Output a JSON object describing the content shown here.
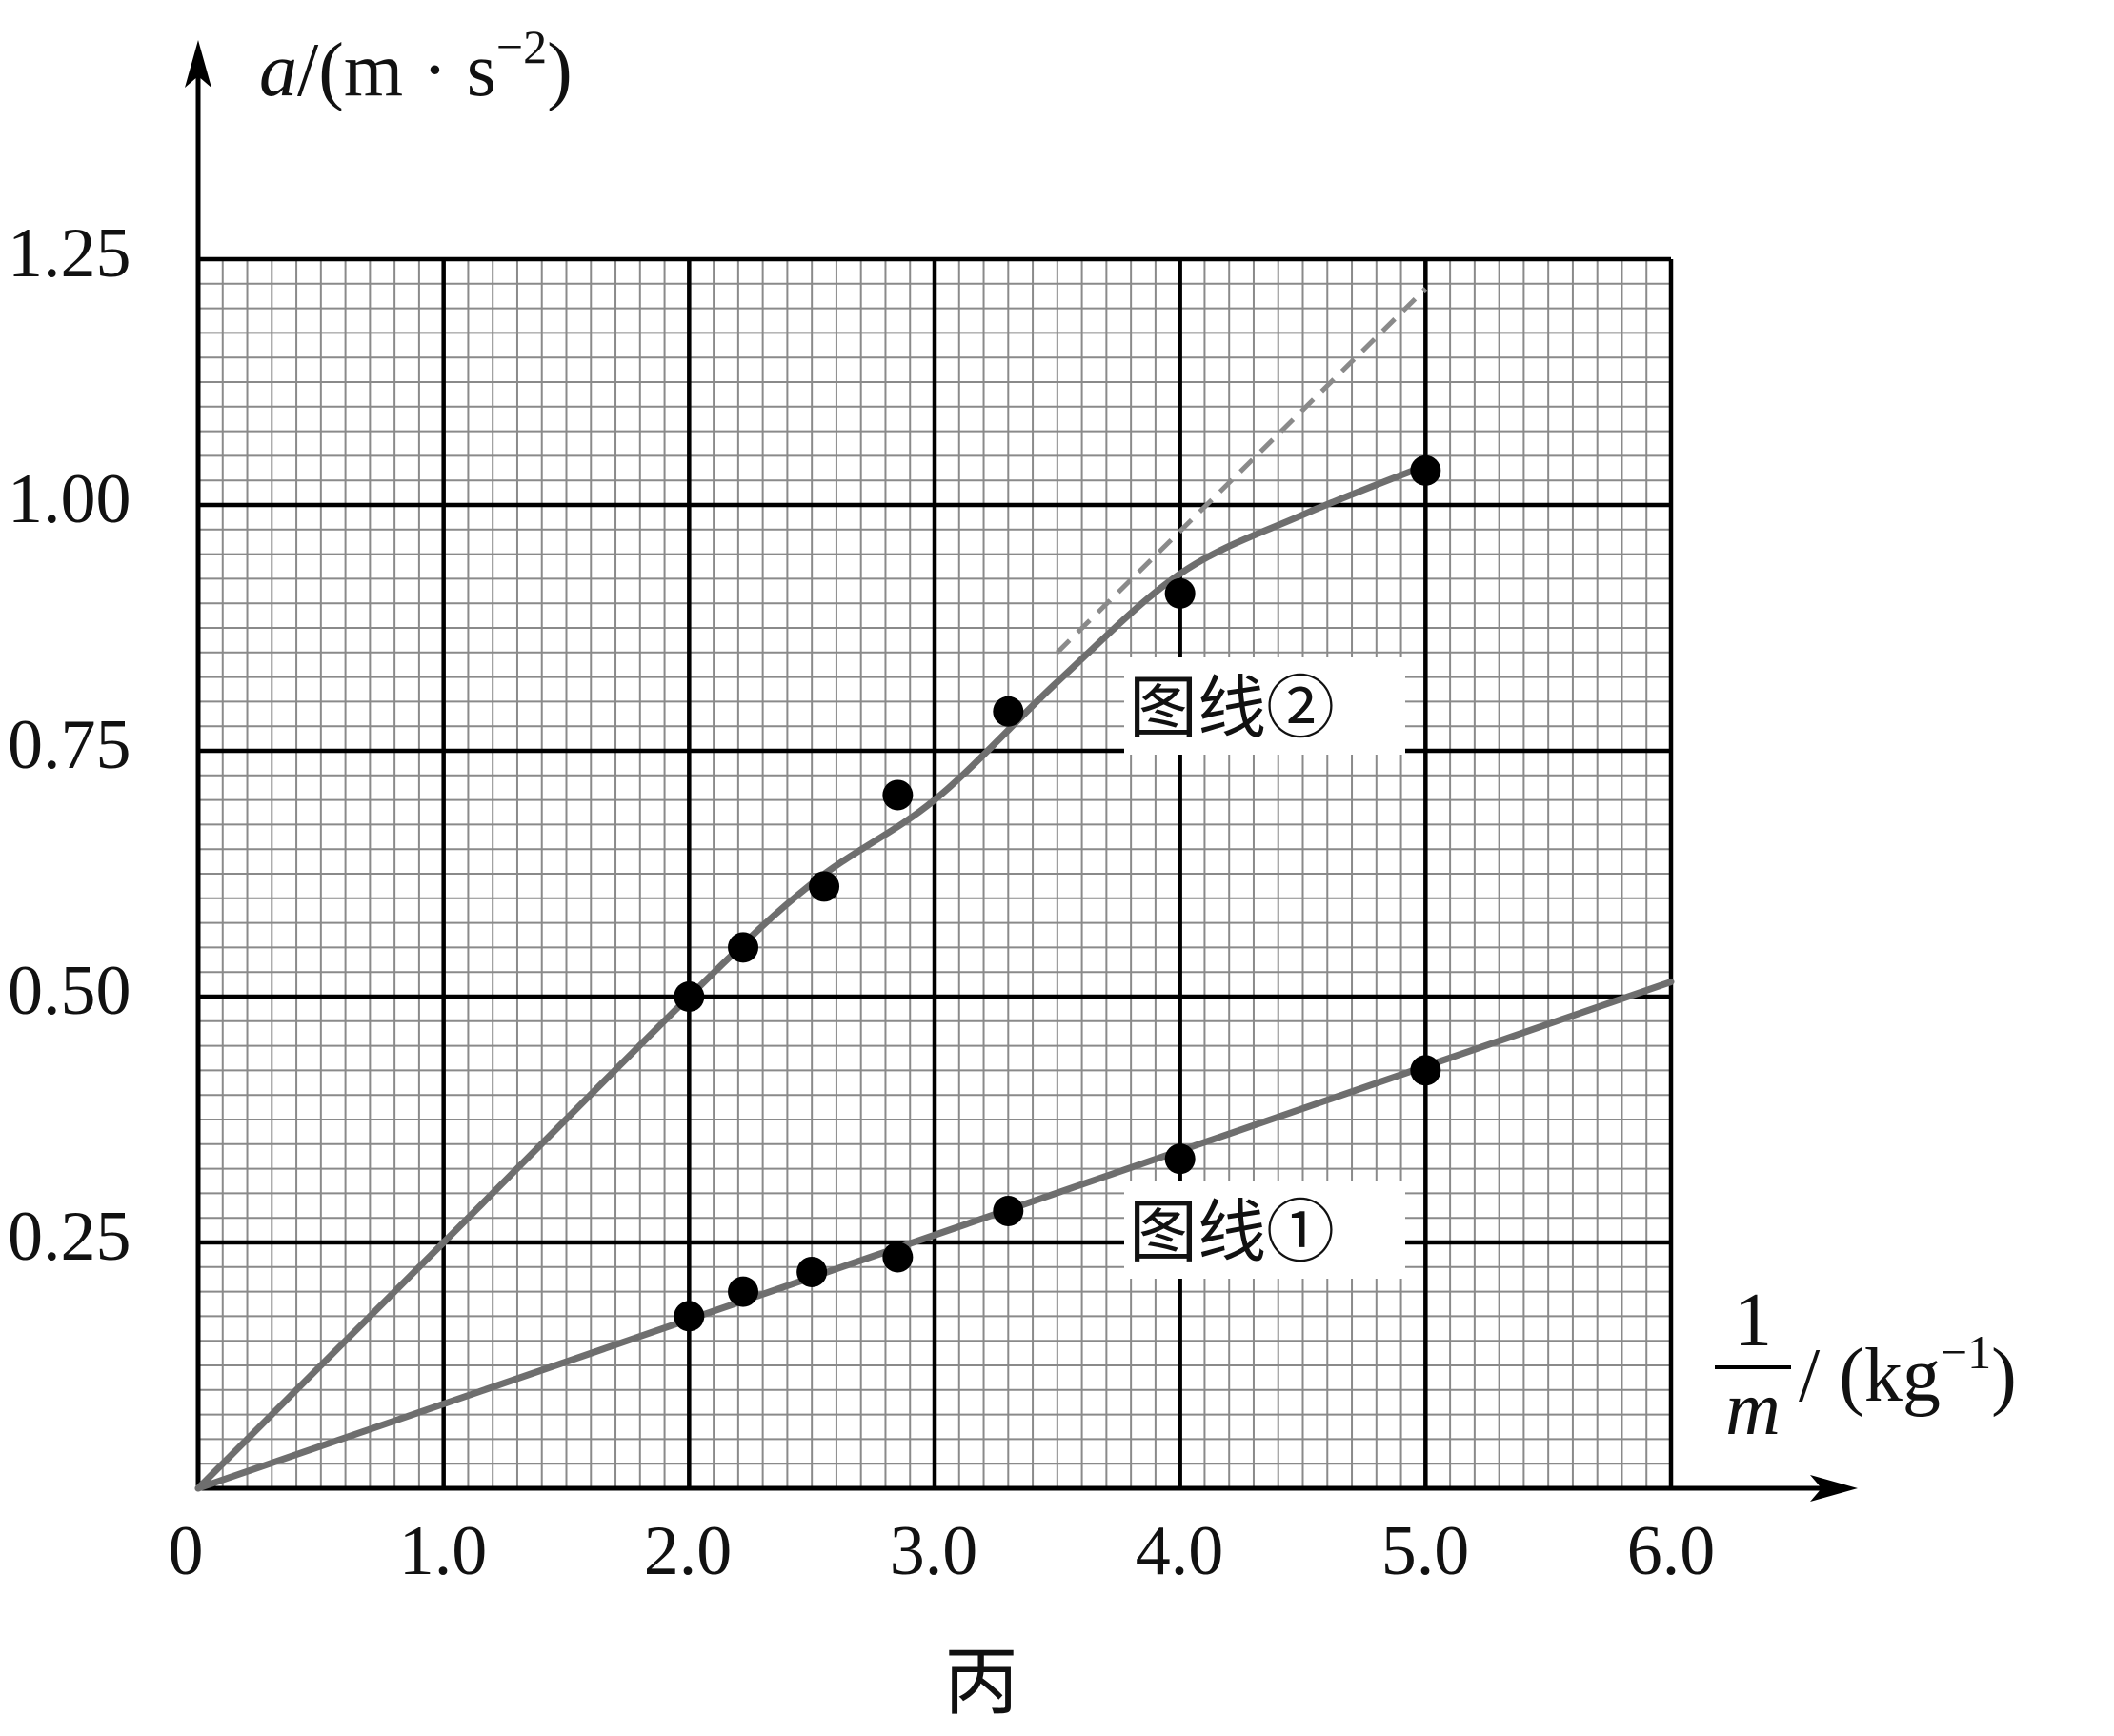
{
  "chart_data": {
    "type": "scatter",
    "x_axis": {
      "label_numerator": "1",
      "label_denominator": "m",
      "label_unit": "/ (kg",
      "label_exponent": "−1",
      "label_close": ")",
      "range": [
        0,
        6.0
      ],
      "ticks": [
        "0",
        "1.0",
        "2.0",
        "3.0",
        "4.0",
        "5.0",
        "6.0"
      ]
    },
    "y_axis": {
      "label_var": "a",
      "label_unit": "/(m · s",
      "label_exponent": "−2",
      "label_close": ")",
      "range": [
        0,
        1.25
      ],
      "ticks": [
        "0.25",
        "0.50",
        "0.75",
        "1.00",
        "1.25"
      ]
    },
    "grid": true,
    "series": [
      {
        "name": "图线①",
        "points": [
          [
            2.0,
            0.175
          ],
          [
            2.22,
            0.2
          ],
          [
            2.5,
            0.22
          ],
          [
            2.85,
            0.235
          ],
          [
            3.3,
            0.282
          ],
          [
            4.0,
            0.335
          ],
          [
            5.0,
            0.425
          ]
        ],
        "fit_line": [
          [
            0,
            0
          ],
          [
            6.0,
            0.515
          ]
        ]
      },
      {
        "name": "图线②",
        "points": [
          [
            2.0,
            0.5
          ],
          [
            2.22,
            0.55
          ],
          [
            2.55,
            0.612
          ],
          [
            2.85,
            0.705
          ],
          [
            3.3,
            0.79
          ],
          [
            4.0,
            0.91
          ],
          [
            5.0,
            1.035
          ]
        ],
        "fit_curve": [
          [
            0,
            0
          ],
          [
            1.0,
            0.25
          ],
          [
            2.0,
            0.5
          ],
          [
            2.5,
            0.615
          ],
          [
            3.0,
            0.7
          ],
          [
            3.5,
            0.82
          ],
          [
            4.0,
            0.93
          ],
          [
            4.5,
            0.99
          ],
          [
            5.0,
            1.04
          ]
        ],
        "extrapolation": [
          [
            3.5,
            0.85
          ],
          [
            5.0,
            1.22
          ]
        ]
      }
    ],
    "caption": "丙"
  },
  "colors": {
    "points": "#000000",
    "curves": "#6e6e6e",
    "major_grid": "#000000",
    "minor_grid": "#8a8a8a"
  }
}
